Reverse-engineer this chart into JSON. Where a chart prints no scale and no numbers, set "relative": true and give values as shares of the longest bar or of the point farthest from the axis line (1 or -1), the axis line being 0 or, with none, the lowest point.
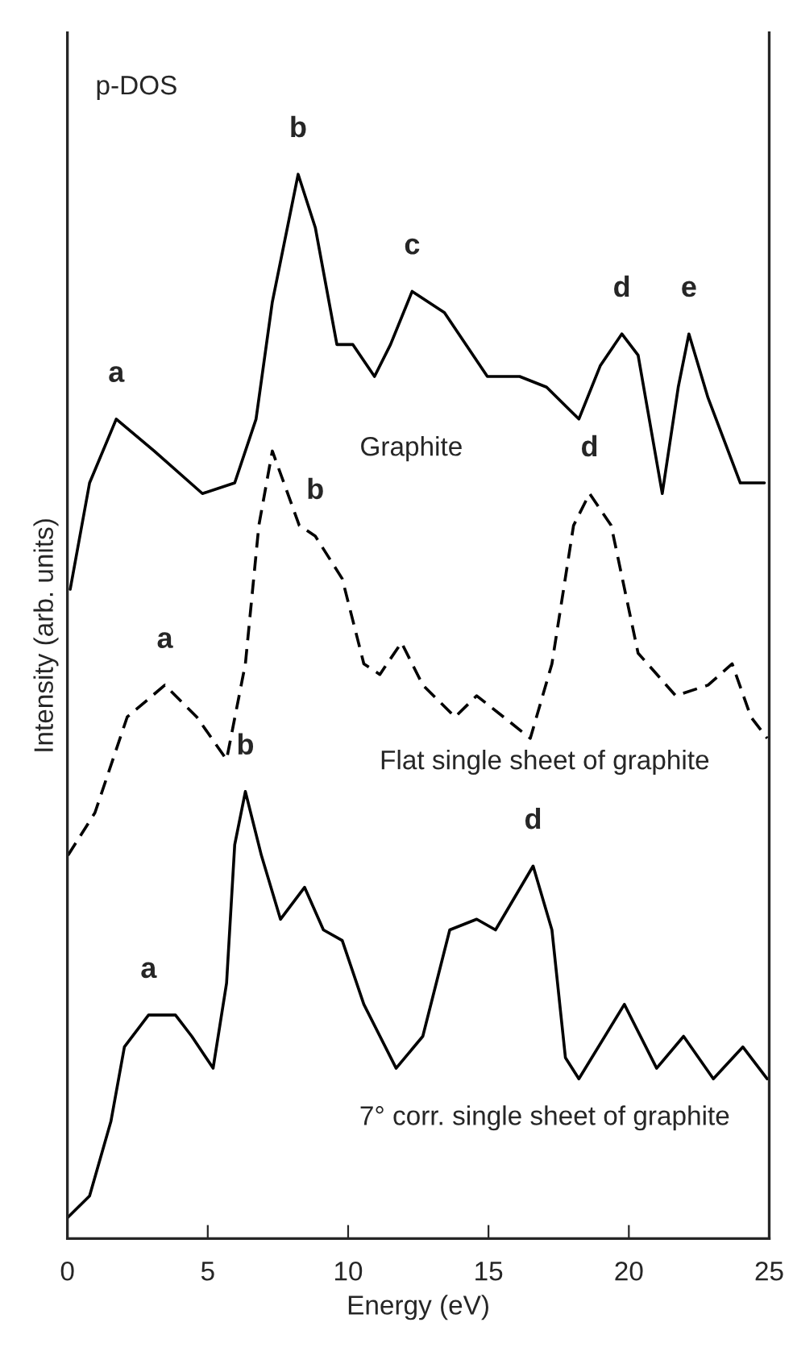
{
  "chart_data": {
    "type": "line",
    "relative": true,
    "xlabel": "Energy (eV)",
    "ylabel": "Intensity (arb. units)",
    "xlim": [
      0,
      25
    ],
    "xticks": [
      0,
      5,
      10,
      15,
      20,
      25
    ],
    "tick_labels": "x",
    "grid": false,
    "legend": false,
    "marker": "none",
    "series": [
      {
        "name": "Graphite",
        "color": "#000000",
        "line_style": "solid",
        "x": [
          0.1,
          0.79,
          1.74,
          3.09,
          4.81,
          5.96,
          6.72,
          7.3,
          8.22,
          8.83,
          9.6,
          10.17,
          10.94,
          11.51,
          12.28,
          13.43,
          14.96,
          16.11,
          17.07,
          18.22,
          18.98,
          19.75,
          20.33,
          21.19,
          21.76,
          22.14,
          22.82,
          23.97,
          24.83
        ],
        "values": [
          0.61,
          0.71,
          0.77,
          0.74,
          0.7,
          0.71,
          0.77,
          0.88,
          1.0,
          0.95,
          0.84,
          0.84,
          0.81,
          0.84,
          0.89,
          0.87,
          0.81,
          0.81,
          0.8,
          0.77,
          0.82,
          0.85,
          0.83,
          0.7,
          0.8,
          0.85,
          0.79,
          0.71,
          0.71
        ]
      },
      {
        "name": "Flat single sheet of graphite",
        "color": "#000000",
        "line_style": "dashed",
        "x": [
          0.02,
          0.98,
          2.13,
          3.47,
          4.61,
          5.67,
          6.34,
          6.82,
          7.3,
          8.26,
          8.83,
          9.79,
          10.56,
          11.13,
          11.9,
          12.66,
          13.81,
          14.58,
          15.54,
          16.49,
          17.26,
          18.03,
          18.6,
          19.37,
          20.33,
          21.67,
          22.82,
          23.68,
          24.35,
          24.93
        ],
        "values": [
          0.36,
          0.4,
          0.49,
          0.52,
          0.49,
          0.45,
          0.54,
          0.67,
          0.74,
          0.67,
          0.66,
          0.62,
          0.54,
          0.53,
          0.56,
          0.52,
          0.49,
          0.51,
          0.49,
          0.47,
          0.54,
          0.67,
          0.7,
          0.67,
          0.55,
          0.51,
          0.52,
          0.54,
          0.49,
          0.47
        ]
      },
      {
        "name": "7° corr. single sheet of graphite",
        "color": "#000000",
        "line_style": "solid",
        "x": [
          0.02,
          0.79,
          1.55,
          2.03,
          2.89,
          3.85,
          4.43,
          5.19,
          5.67,
          5.96,
          6.34,
          6.91,
          7.59,
          8.45,
          9.12,
          9.79,
          10.56,
          11.71,
          12.66,
          13.62,
          14.58,
          15.25,
          16.59,
          17.26,
          17.74,
          18.22,
          19.84,
          20.99,
          21.95,
          23.01,
          24.06,
          24.93
        ],
        "values": [
          0.02,
          0.04,
          0.11,
          0.18,
          0.21,
          0.21,
          0.19,
          0.16,
          0.24,
          0.37,
          0.42,
          0.36,
          0.3,
          0.33,
          0.29,
          0.28,
          0.22,
          0.16,
          0.19,
          0.29,
          0.3,
          0.29,
          0.35,
          0.29,
          0.17,
          0.15,
          0.22,
          0.16,
          0.19,
          0.15,
          0.18,
          0.15
        ]
      }
    ],
    "annotations": [
      "p-DOS",
      {
        "text": "a",
        "x": 1.74,
        "y": 0.77
      },
      {
        "text": "b",
        "x": 8.22,
        "y": 1.0
      },
      {
        "text": "c",
        "x": 12.28,
        "y": 0.89
      },
      {
        "text": "d",
        "x": 19.75,
        "y": 0.85
      },
      {
        "text": "e",
        "x": 22.14,
        "y": 0.85
      },
      {
        "text": "a",
        "x": 3.47,
        "y": 0.52
      },
      {
        "text": "b",
        "x": 8.83,
        "y": 0.66
      },
      {
        "text": "d",
        "x": 18.6,
        "y": 0.7
      },
      {
        "text": "a",
        "x": 2.89,
        "y": 0.21
      },
      {
        "text": "b",
        "x": 6.34,
        "y": 0.42
      },
      {
        "text": "d",
        "x": 16.59,
        "y": 0.35
      }
    ]
  }
}
